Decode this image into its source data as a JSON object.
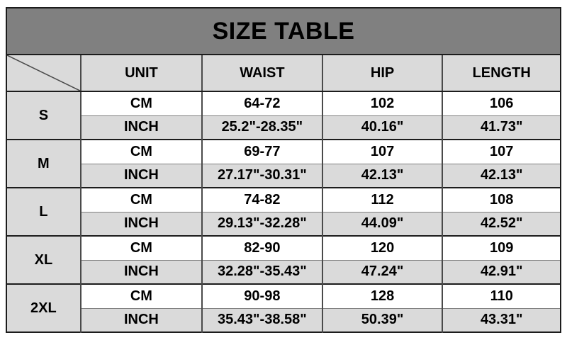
{
  "title": "SIZE TABLE",
  "header": {
    "unit": "UNIT",
    "waist": "WAIST",
    "hip": "HIP",
    "length": "LENGTH"
  },
  "unit_row_labels": {
    "cm": "CM",
    "inch": "INCH"
  },
  "sizes": [
    {
      "size": "S",
      "cm": {
        "waist": "64-72",
        "hip": "102",
        "length": "106"
      },
      "inch": {
        "waist": "25.2\"-28.35\"",
        "hip": "40.16\"",
        "length": "41.73\""
      }
    },
    {
      "size": "M",
      "cm": {
        "waist": "69-77",
        "hip": "107",
        "length": "107"
      },
      "inch": {
        "waist": "27.17\"-30.31\"",
        "hip": "42.13\"",
        "length": "42.13\""
      }
    },
    {
      "size": "L",
      "cm": {
        "waist": "74-82",
        "hip": "112",
        "length": "108"
      },
      "inch": {
        "waist": "29.13\"-32.28\"",
        "hip": "44.09\"",
        "length": "42.52\""
      }
    },
    {
      "size": "XL",
      "cm": {
        "waist": "82-90",
        "hip": "120",
        "length": "109"
      },
      "inch": {
        "waist": "32.28\"-35.43\"",
        "hip": "47.24\"",
        "length": "42.91\""
      }
    },
    {
      "size": "2XL",
      "cm": {
        "waist": "90-98",
        "hip": "128",
        "length": "110"
      },
      "inch": {
        "waist": "35.43\"-38.58\"",
        "hip": "50.39\"",
        "length": "43.31\""
      }
    }
  ],
  "colors": {
    "title_bg": "#808080",
    "cell_gray": "#dadada",
    "cell_white": "#ffffff",
    "border_dark": "#1c1c1c",
    "border_mid": "#4a4a4a",
    "border_light": "#7f7f7f",
    "text_color": "#000000"
  }
}
